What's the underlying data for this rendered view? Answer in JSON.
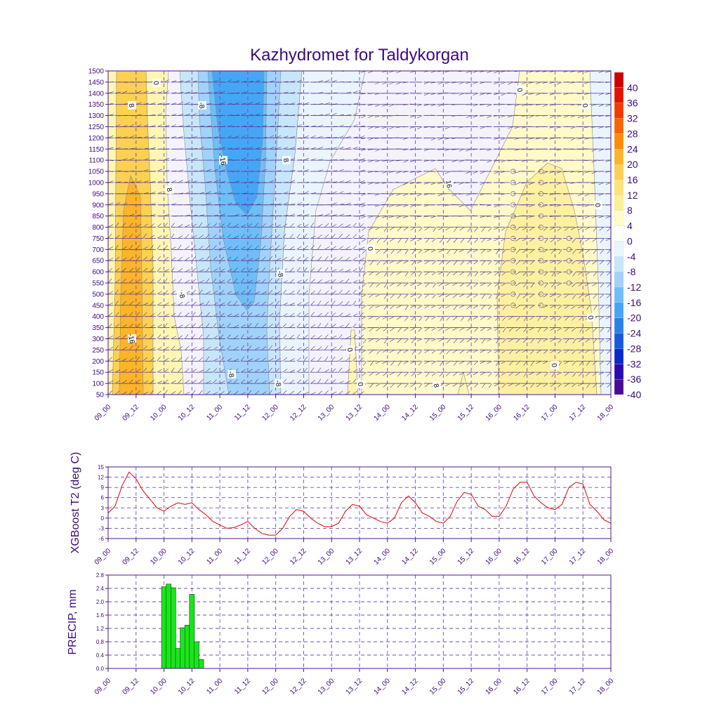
{
  "chart_data": [
    {
      "type": "heatmap",
      "title": "Kazhydromet for Taldykorgan",
      "xlabel": "",
      "ylabel": "",
      "x_tick_labels": [
        "09_00",
        "09_12",
        "10_00",
        "10_12",
        "11_00",
        "11_12",
        "12_00",
        "12_12",
        "13_00",
        "13_12",
        "14_00",
        "14_12",
        "15_00",
        "15_12",
        "16_00",
        "16_12",
        "17_00",
        "17_12",
        "18_00"
      ],
      "y_tick_labels": [
        "1500",
        "1450",
        "1400",
        "1350",
        "1300",
        "1250",
        "1200",
        "1150",
        "1100",
        "1050",
        "1000",
        "950",
        "900",
        "850",
        "800",
        "750",
        "700",
        "650",
        "600",
        "550",
        "500",
        "450",
        "400",
        "350",
        "300",
        "250",
        "200",
        "150",
        "100",
        "50"
      ],
      "ylim": [
        50,
        1500
      ],
      "colorbar_labels": [
        "40",
        "36",
        "32",
        "28",
        "24",
        "20",
        "16",
        "12",
        "8",
        "4",
        "0",
        "-4",
        "-8",
        "-12",
        "-16",
        "-20",
        "-24",
        "-28",
        "-32",
        "-36",
        "-40"
      ],
      "colorbar_colors": [
        "#cc0000",
        "#e01400",
        "#f03c00",
        "#f86400",
        "#fc8c00",
        "#fcb428",
        "#fcd050",
        "#fce478",
        "#fcf096",
        "#fffcc8",
        "#ffffff",
        "#eaf4fc",
        "#c8e6fa",
        "#a0d2fa",
        "#6ebef8",
        "#46a6f6",
        "#2a82e8",
        "#145adc",
        "#0a2ac8",
        "#2a0ab0",
        "#4a0a96"
      ],
      "contour_labels": [
        "0",
        "8",
        "-8",
        "-16",
        "-8",
        "8",
        "-16",
        "-8",
        "8",
        "0",
        "0",
        "-8",
        "-8",
        "0",
        "16",
        "0",
        "0",
        "0",
        "0",
        "0",
        "8",
        "0"
      ],
      "wind_barbs": "wind barbs plotted at every level and time step"
    },
    {
      "type": "line",
      "title": "",
      "xlabel": "",
      "ylabel": "XGBoost T2 (deg C)",
      "ylim": [
        -6,
        15
      ],
      "y_tick_labels": [
        "15",
        "12",
        "9",
        "6",
        "3",
        "0",
        "-3",
        "-6"
      ],
      "x_tick_labels": [
        "09_00",
        "09_12",
        "10_00",
        "10_12",
        "11_00",
        "11_12",
        "12_00",
        "12_12",
        "13_00",
        "13_12",
        "14_00",
        "14_12",
        "15_00",
        "15_12",
        "16_00",
        "16_12",
        "17_00",
        "17_12",
        "18_00"
      ],
      "series": [
        {
          "name": "T2",
          "color": "#e00000",
          "values": [
            1.5,
            3.5,
            9.5,
            13.5,
            11.5,
            8,
            5.5,
            3,
            2,
            3.5,
            4.5,
            4,
            4.5,
            2.5,
            1,
            -1,
            -2,
            -3,
            -2.8,
            -2,
            -1,
            -3,
            -4.5,
            -5,
            -5,
            -3,
            0.5,
            2.5,
            2,
            0,
            -1.5,
            -2.5,
            -2.5,
            -1.5,
            2,
            4,
            3.5,
            1,
            0,
            -1,
            -1.5,
            0,
            4.5,
            6.5,
            4.5,
            1.5,
            0.5,
            -1,
            -1.5,
            0.5,
            5,
            7.5,
            7,
            3.5,
            2.5,
            0.5,
            0.5,
            3.5,
            8.5,
            10.5,
            10.5,
            6.5,
            4.5,
            3,
            2.5,
            4,
            9,
            10.5,
            10,
            4,
            2,
            -0.5,
            -1.5
          ]
        }
      ]
    },
    {
      "type": "bar",
      "title": "",
      "xlabel": "",
      "ylabel": "PRECIP, mm",
      "ylim": [
        0,
        2.8
      ],
      "y_tick_labels": [
        "2.8",
        "2.4",
        "2.0",
        "1.6",
        "1.2",
        "0.8",
        "0.4",
        "0.0"
      ],
      "x_tick_labels": [
        "09_00",
        "09_12",
        "10_00",
        "10_12",
        "11_00",
        "11_12",
        "12_00",
        "12_12",
        "13_00",
        "13_12",
        "14_00",
        "14_12",
        "15_00",
        "15_12",
        "16_00",
        "16_12",
        "17_00",
        "17_12",
        "18_00"
      ],
      "bar_color": "#19e619",
      "bars": [
        {
          "hour": 24,
          "value": 2.45
        },
        {
          "hour": 26,
          "value": 2.53
        },
        {
          "hour": 28,
          "value": 2.42
        },
        {
          "hour": 30,
          "value": 0.6
        },
        {
          "hour": 32,
          "value": 1.22
        },
        {
          "hour": 34,
          "value": 1.3
        },
        {
          "hour": 36,
          "value": 2.22
        },
        {
          "hour": 38,
          "value": 0.8
        },
        {
          "hour": 40,
          "value": 0.27
        }
      ]
    }
  ]
}
